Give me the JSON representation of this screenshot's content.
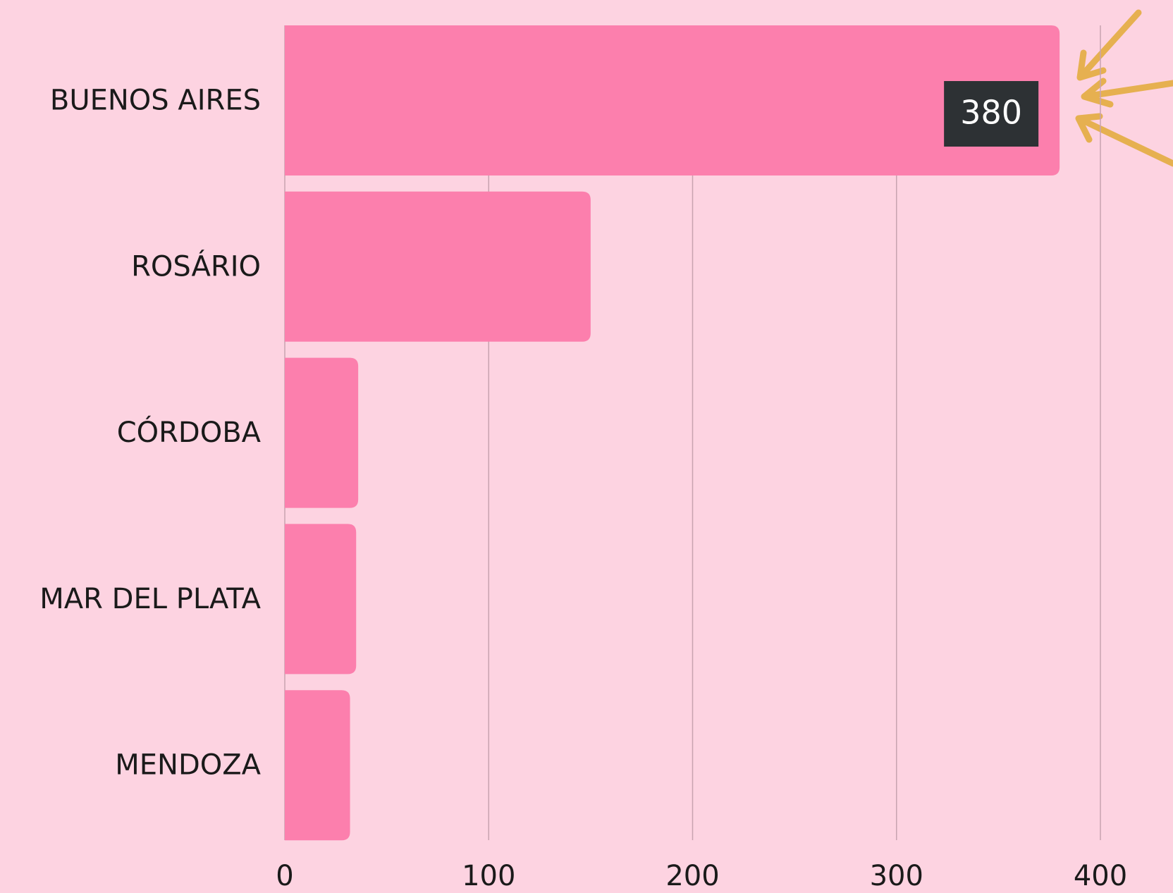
{
  "chart_data": {
    "type": "bar",
    "orientation": "horizontal",
    "categories": [
      "BUENOS AIRES",
      "ROSÁRIO",
      "CÓRDOBA",
      "MAR DEL PLATA",
      "MENDOZA"
    ],
    "values": [
      380,
      150,
      36,
      35,
      32
    ],
    "color": "#fc7fad",
    "xlim": [
      0,
      400
    ],
    "xticks": [
      0,
      100,
      200,
      300,
      400
    ],
    "grid": true
  }
}
